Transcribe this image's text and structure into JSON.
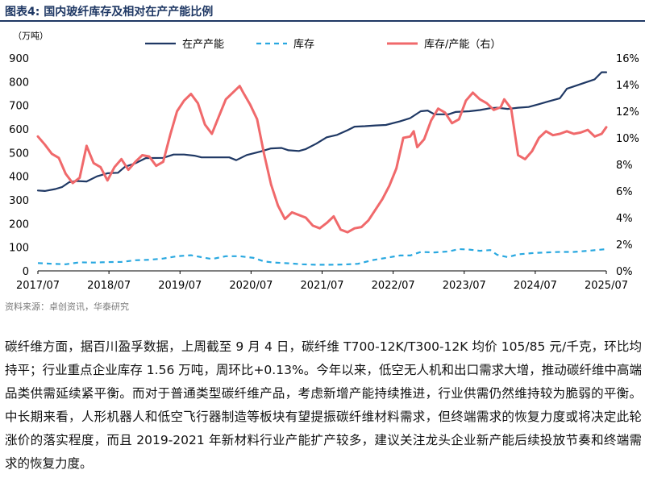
{
  "figure": {
    "title": "图表4:    国内玻纤库存及相对在产产能比例",
    "source": "资料来源：卓创资讯，华泰研究"
  },
  "body_text": "碳纤维方面，据百川盈孚数据，上周截至 9 月 4 日，碳纤维 T700-12K/T300-12K 均价 105/85 元/千克，环比均持平；行业重点企业库存 1.56 万吨，周环比+0.13%。今年以来，低空无人机和出口需求大增，推动碳纤维中高端品类供需延续紧平衡。而对于普通类型碳纤维产品，考虑新增产能持续推进，行业供需仍然维持较为脆弱的平衡。中长期来看，人形机器人和低空飞行器制造等板块有望提振碳纤维材料需求，但终端需求的恢复力度或将决定此轮涨价的落实程度，而且 2019-2021 年新材料行业产能扩产较多，建议关注龙头企业新产能后续投放节奏和终端需求的恢复力度。",
  "chart_data": {
    "type": "line",
    "y_unit_label": "（万吨）",
    "x_ticks": [
      "2017/07",
      "2018/07",
      "2019/07",
      "2020/07",
      "2021/07",
      "2022/07",
      "2023/07",
      "2024/07",
      "2025/07"
    ],
    "x_range": [
      2017.5,
      2025.667
    ],
    "ylim_left": [
      0,
      900
    ],
    "ylim_right": [
      0,
      16
    ],
    "y_ticks_left": [
      "0",
      "100",
      "200",
      "300",
      "400",
      "500",
      "600",
      "700",
      "800",
      "900"
    ],
    "y_ticks_right": [
      "0%",
      "2%",
      "4%",
      "6%",
      "8%",
      "10%",
      "12%",
      "14%",
      "16%"
    ],
    "grid": false,
    "legend_position": "top",
    "series": [
      {
        "name": "在产产能",
        "axis": "left",
        "color": "#1f3864",
        "style": "solid",
        "points": [
          [
            2017.5,
            340
          ],
          [
            2017.6,
            338
          ],
          [
            2017.75,
            346
          ],
          [
            2017.85,
            355
          ],
          [
            2017.95,
            375
          ],
          [
            2018.05,
            380
          ],
          [
            2018.2,
            378
          ],
          [
            2018.35,
            400
          ],
          [
            2018.5,
            413
          ],
          [
            2018.65,
            415
          ],
          [
            2018.75,
            440
          ],
          [
            2018.9,
            455
          ],
          [
            2019.05,
            477
          ],
          [
            2019.3,
            478
          ],
          [
            2019.45,
            492
          ],
          [
            2019.6,
            492
          ],
          [
            2019.75,
            487
          ],
          [
            2019.85,
            480
          ],
          [
            2020.1,
            480
          ],
          [
            2020.25,
            480
          ],
          [
            2020.35,
            468
          ],
          [
            2020.5,
            490
          ],
          [
            2020.7,
            505
          ],
          [
            2020.85,
            518
          ],
          [
            2021.0,
            520
          ],
          [
            2021.1,
            510
          ],
          [
            2021.25,
            507
          ],
          [
            2021.35,
            515
          ],
          [
            2021.5,
            538
          ],
          [
            2021.65,
            565
          ],
          [
            2021.8,
            575
          ],
          [
            2021.95,
            595
          ],
          [
            2022.05,
            610
          ],
          [
            2022.2,
            612
          ],
          [
            2022.35,
            615
          ],
          [
            2022.5,
            617
          ],
          [
            2022.7,
            632
          ],
          [
            2022.85,
            646
          ],
          [
            2023.0,
            675
          ],
          [
            2023.1,
            678
          ],
          [
            2023.2,
            662
          ],
          [
            2023.4,
            662
          ],
          [
            2023.5,
            672
          ],
          [
            2023.7,
            675
          ],
          [
            2023.85,
            680
          ],
          [
            2024.0,
            688
          ],
          [
            2024.1,
            690
          ],
          [
            2024.25,
            685
          ],
          [
            2024.4,
            690
          ],
          [
            2024.55,
            693
          ],
          [
            2024.7,
            705
          ],
          [
            2024.85,
            718
          ],
          [
            2025.0,
            730
          ],
          [
            2025.1,
            770
          ],
          [
            2025.2,
            780
          ],
          [
            2025.35,
            795
          ],
          [
            2025.5,
            810
          ],
          [
            2025.6,
            840
          ],
          [
            2025.667,
            840
          ]
        ]
      },
      {
        "name": "库存",
        "axis": "left",
        "color": "#29a8e0",
        "style": "dashed",
        "points": [
          [
            2017.5,
            33
          ],
          [
            2017.7,
            30
          ],
          [
            2017.9,
            28
          ],
          [
            2018.1,
            36
          ],
          [
            2018.3,
            35
          ],
          [
            2018.5,
            37
          ],
          [
            2018.7,
            38
          ],
          [
            2018.9,
            45
          ],
          [
            2019.1,
            47
          ],
          [
            2019.3,
            52
          ],
          [
            2019.5,
            62
          ],
          [
            2019.7,
            66
          ],
          [
            2019.85,
            58
          ],
          [
            2020.0,
            50
          ],
          [
            2020.2,
            62
          ],
          [
            2020.4,
            62
          ],
          [
            2020.6,
            55
          ],
          [
            2020.75,
            40
          ],
          [
            2020.9,
            35
          ],
          [
            2021.1,
            32
          ],
          [
            2021.3,
            28
          ],
          [
            2021.5,
            26
          ],
          [
            2021.7,
            26
          ],
          [
            2021.9,
            27
          ],
          [
            2022.1,
            30
          ],
          [
            2022.3,
            45
          ],
          [
            2022.5,
            55
          ],
          [
            2022.7,
            65
          ],
          [
            2022.85,
            65
          ],
          [
            2023.0,
            80
          ],
          [
            2023.2,
            78
          ],
          [
            2023.4,
            82
          ],
          [
            2023.55,
            92
          ],
          [
            2023.7,
            90
          ],
          [
            2023.85,
            85
          ],
          [
            2024.0,
            88
          ],
          [
            2024.1,
            68
          ],
          [
            2024.25,
            58
          ],
          [
            2024.4,
            70
          ],
          [
            2024.6,
            75
          ],
          [
            2024.8,
            78
          ],
          [
            2025.0,
            80
          ],
          [
            2025.2,
            80
          ],
          [
            2025.4,
            85
          ],
          [
            2025.667,
            92
          ]
        ]
      },
      {
        "name": "库存/产能（右）",
        "axis": "right",
        "color": "#f0696b",
        "style": "solid",
        "points": [
          [
            2017.5,
            10.1
          ],
          [
            2017.6,
            9.5
          ],
          [
            2017.7,
            8.8
          ],
          [
            2017.8,
            8.5
          ],
          [
            2017.9,
            7.3
          ],
          [
            2018.0,
            6.6
          ],
          [
            2018.1,
            7.0
          ],
          [
            2018.2,
            9.4
          ],
          [
            2018.3,
            8.1
          ],
          [
            2018.4,
            7.8
          ],
          [
            2018.5,
            6.8
          ],
          [
            2018.6,
            7.8
          ],
          [
            2018.7,
            8.4
          ],
          [
            2018.8,
            7.6
          ],
          [
            2018.9,
            8.2
          ],
          [
            2019.0,
            8.7
          ],
          [
            2019.1,
            8.6
          ],
          [
            2019.2,
            7.9
          ],
          [
            2019.3,
            8.2
          ],
          [
            2019.4,
            10.2
          ],
          [
            2019.5,
            12.0
          ],
          [
            2019.6,
            12.8
          ],
          [
            2019.7,
            13.3
          ],
          [
            2019.8,
            12.6
          ],
          [
            2019.9,
            11.0
          ],
          [
            2020.0,
            10.3
          ],
          [
            2020.1,
            11.6
          ],
          [
            2020.2,
            12.9
          ],
          [
            2020.3,
            13.4
          ],
          [
            2020.4,
            13.9
          ],
          [
            2020.45,
            13.4
          ],
          [
            2020.55,
            12.5
          ],
          [
            2020.65,
            11.4
          ],
          [
            2020.75,
            8.8
          ],
          [
            2020.85,
            6.5
          ],
          [
            2020.95,
            4.9
          ],
          [
            2021.05,
            3.9
          ],
          [
            2021.15,
            4.4
          ],
          [
            2021.25,
            4.2
          ],
          [
            2021.35,
            4.0
          ],
          [
            2021.45,
            3.4
          ],
          [
            2021.55,
            3.2
          ],
          [
            2021.65,
            3.6
          ],
          [
            2021.75,
            4.1
          ],
          [
            2021.85,
            3.1
          ],
          [
            2021.95,
            2.9
          ],
          [
            2022.05,
            3.2
          ],
          [
            2022.15,
            3.3
          ],
          [
            2022.25,
            3.8
          ],
          [
            2022.35,
            4.6
          ],
          [
            2022.45,
            5.4
          ],
          [
            2022.55,
            6.4
          ],
          [
            2022.65,
            7.7
          ],
          [
            2022.75,
            10.0
          ],
          [
            2022.85,
            10.1
          ],
          [
            2022.9,
            10.5
          ],
          [
            2022.95,
            9.3
          ],
          [
            2023.05,
            9.9
          ],
          [
            2023.15,
            11.3
          ],
          [
            2023.25,
            12.2
          ],
          [
            2023.35,
            11.9
          ],
          [
            2023.45,
            11.1
          ],
          [
            2023.55,
            11.4
          ],
          [
            2023.65,
            12.8
          ],
          [
            2023.75,
            13.4
          ],
          [
            2023.85,
            12.9
          ],
          [
            2023.95,
            12.6
          ],
          [
            2024.05,
            12.1
          ],
          [
            2024.15,
            12.3
          ],
          [
            2024.2,
            12.9
          ],
          [
            2024.3,
            12.2
          ],
          [
            2024.4,
            8.7
          ],
          [
            2024.5,
            8.4
          ],
          [
            2024.6,
            9.0
          ],
          [
            2024.7,
            10.0
          ],
          [
            2024.8,
            10.5
          ],
          [
            2024.9,
            10.2
          ],
          [
            2025.0,
            10.3
          ],
          [
            2025.1,
            10.5
          ],
          [
            2025.2,
            10.3
          ],
          [
            2025.3,
            10.4
          ],
          [
            2025.4,
            10.6
          ],
          [
            2025.5,
            10.1
          ],
          [
            2025.6,
            10.3
          ],
          [
            2025.667,
            10.8
          ]
        ]
      }
    ]
  }
}
